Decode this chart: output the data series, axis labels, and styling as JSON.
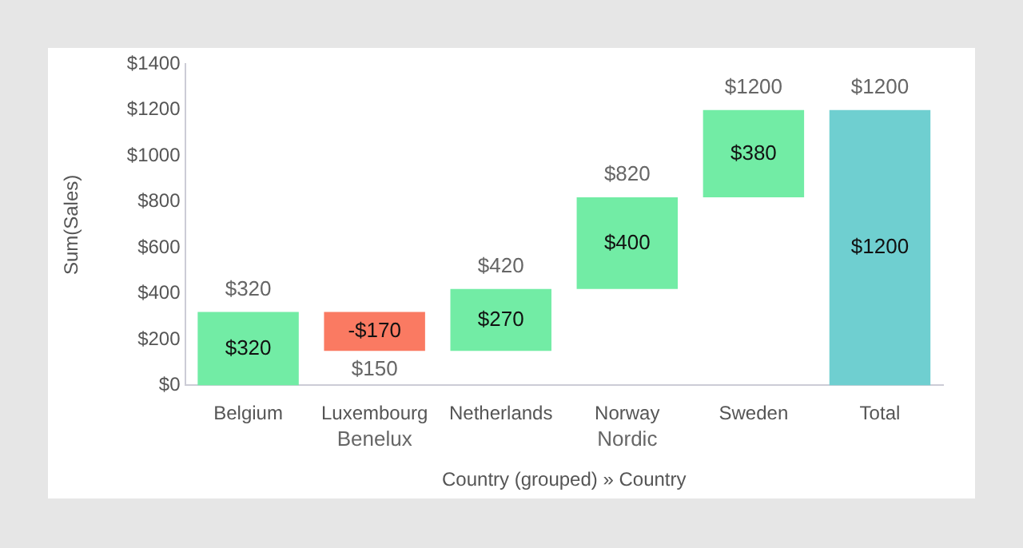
{
  "chart_data": {
    "type": "bar",
    "ylabel": "Sum(Sales)",
    "xlabel": "Country (grouped) » Country",
    "categories": [
      "Belgium",
      "Luxembourg",
      "Netherlands",
      "Norway",
      "Sweden",
      "Total"
    ],
    "values": [
      320,
      -170,
      270,
      400,
      380,
      1200
    ],
    "base": [
      0,
      320,
      150,
      420,
      820,
      0
    ],
    "colors": [
      "#72eca5",
      "#fa7a62",
      "#72eca5",
      "#72eca5",
      "#72eca5",
      "#6fcfd0"
    ],
    "value_labels": [
      "$320",
      "-$170",
      "$270",
      "$400",
      "$380",
      "$1200"
    ],
    "ylim": [
      0,
      1400
    ],
    "yticks": [
      {
        "value": 0,
        "label": "$0"
      },
      {
        "value": 200,
        "label": "$200"
      },
      {
        "value": 400,
        "label": "$400"
      },
      {
        "value": 600,
        "label": "$600"
      },
      {
        "value": 800,
        "label": "$800"
      },
      {
        "value": 1000,
        "label": "$1000"
      },
      {
        "value": 1200,
        "label": "$1200"
      },
      {
        "value": 1400,
        "label": "$1400"
      }
    ],
    "grid": false,
    "legend": false,
    "annotations": [
      {
        "text": "$320",
        "x": "Belgium",
        "y": 320
      },
      {
        "text": "$150",
        "x": "Luxembourg",
        "y": 150
      },
      {
        "text": "$420",
        "x": "Netherlands",
        "y": 420
      },
      {
        "text": "$820",
        "x": "Norway",
        "y": 820
      },
      {
        "text": "$1200",
        "x": "Sweden",
        "y": 1200
      },
      {
        "text": "$1200",
        "x": "Total",
        "y": 1200
      },
      "Benelux",
      "Nordic"
    ]
  }
}
